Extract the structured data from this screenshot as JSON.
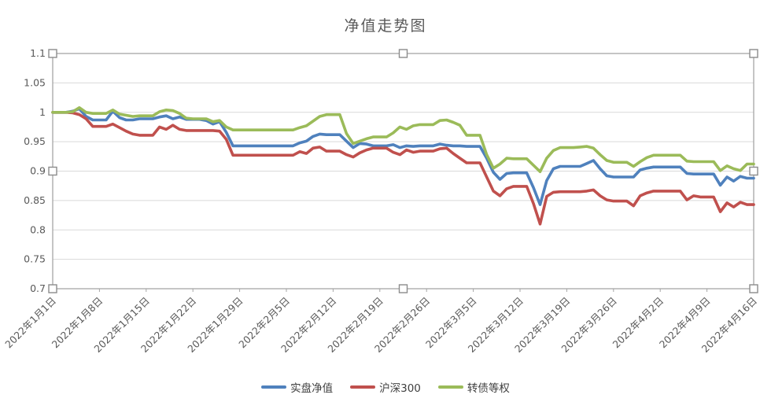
{
  "window": {
    "background": "#FFFFFF"
  },
  "selection": {
    "handles_visible": true,
    "handle_fill": "#FFFFFF",
    "handle_border": "#8C8C8C",
    "plot_border_color": "#A6A6A6"
  },
  "chart_data": {
    "type": "line",
    "title": "净值走势图",
    "grid": "horizontal",
    "gridline_color": "#D9D9D9",
    "axis_text_color": "#595959",
    "legend_position": "bottom",
    "x_label_rotation": -45,
    "ylim": [
      0.7,
      1.1
    ],
    "y_tick_step": 0.05,
    "y_tick_labels": [
      "1.1",
      "1.05",
      "1",
      "0.95",
      "0.9",
      "0.85",
      "0.8",
      "0.75",
      "0.7"
    ],
    "x_tick_labels": [
      "2022年1月1日",
      "2022年1月8日",
      "2022年1月15日",
      "2022年1月22日",
      "2022年1月29日",
      "2022年2月5日",
      "2022年2月12日",
      "2022年2月19日",
      "2022年2月26日",
      "2022年3月5日",
      "2022年3月12日",
      "2022年3月19日",
      "2022年3月26日",
      "2022年4月2日",
      "2022年4月9日",
      "2022年4月16日"
    ],
    "x_is_daily": true,
    "dates": [
      "2022-01-01",
      "2022-01-02",
      "2022-01-03",
      "2022-01-04",
      "2022-01-05",
      "2022-01-06",
      "2022-01-07",
      "2022-01-08",
      "2022-01-09",
      "2022-01-10",
      "2022-01-11",
      "2022-01-12",
      "2022-01-13",
      "2022-01-14",
      "2022-01-15",
      "2022-01-16",
      "2022-01-17",
      "2022-01-18",
      "2022-01-19",
      "2022-01-20",
      "2022-01-21",
      "2022-01-22",
      "2022-01-23",
      "2022-01-24",
      "2022-01-25",
      "2022-01-26",
      "2022-01-27",
      "2022-01-28",
      "2022-01-29",
      "2022-01-30",
      "2022-01-31",
      "2022-02-01",
      "2022-02-02",
      "2022-02-03",
      "2022-02-04",
      "2022-02-05",
      "2022-02-06",
      "2022-02-07",
      "2022-02-08",
      "2022-02-09",
      "2022-02-10",
      "2022-02-11",
      "2022-02-12",
      "2022-02-13",
      "2022-02-14",
      "2022-02-15",
      "2022-02-16",
      "2022-02-17",
      "2022-02-18",
      "2022-02-19",
      "2022-02-20",
      "2022-02-21",
      "2022-02-22",
      "2022-02-23",
      "2022-02-24",
      "2022-02-25",
      "2022-02-26",
      "2022-02-27",
      "2022-02-28",
      "2022-03-01",
      "2022-03-02",
      "2022-03-03",
      "2022-03-04",
      "2022-03-05",
      "2022-03-06",
      "2022-03-07",
      "2022-03-08",
      "2022-03-09",
      "2022-03-10",
      "2022-03-11",
      "2022-03-12",
      "2022-03-13",
      "2022-03-14",
      "2022-03-15",
      "2022-03-16",
      "2022-03-17",
      "2022-03-18",
      "2022-03-19",
      "2022-03-20",
      "2022-03-21",
      "2022-03-22",
      "2022-03-23",
      "2022-03-24",
      "2022-03-25",
      "2022-03-26",
      "2022-03-27",
      "2022-03-28",
      "2022-03-29",
      "2022-03-30",
      "2022-03-31",
      "2022-04-01",
      "2022-04-02",
      "2022-04-03",
      "2022-04-04",
      "2022-04-05",
      "2022-04-06",
      "2022-04-07",
      "2022-04-08",
      "2022-04-09",
      "2022-04-10",
      "2022-04-11",
      "2022-04-12",
      "2022-04-13",
      "2022-04-14",
      "2022-04-15",
      "2022-04-16"
    ],
    "series": [
      {
        "name": "实盘净值",
        "color": "#4F81BD",
        "values": [
          1.0,
          1.0,
          1.0,
          1.002,
          1.006,
          0.993,
          0.987,
          0.987,
          0.987,
          1.002,
          0.991,
          0.987,
          0.987,
          0.989,
          0.989,
          0.989,
          0.992,
          0.994,
          0.989,
          0.992,
          0.988,
          0.988,
          0.988,
          0.986,
          0.98,
          0.984,
          0.966,
          0.943,
          0.943,
          0.943,
          0.943,
          0.943,
          0.943,
          0.943,
          0.943,
          0.943,
          0.943,
          0.948,
          0.951,
          0.959,
          0.963,
          0.962,
          0.962,
          0.962,
          0.951,
          0.94,
          0.947,
          0.946,
          0.943,
          0.943,
          0.943,
          0.945,
          0.94,
          0.943,
          0.942,
          0.943,
          0.943,
          0.943,
          0.946,
          0.944,
          0.943,
          0.943,
          0.942,
          0.942,
          0.942,
          0.922,
          0.898,
          0.886,
          0.896,
          0.897,
          0.897,
          0.897,
          0.872,
          0.843,
          0.884,
          0.904,
          0.908,
          0.908,
          0.908,
          0.908,
          0.913,
          0.918,
          0.904,
          0.892,
          0.89,
          0.89,
          0.89,
          0.89,
          0.902,
          0.905,
          0.907,
          0.907,
          0.907,
          0.907,
          0.907,
          0.896,
          0.895,
          0.895,
          0.895,
          0.895,
          0.876,
          0.89,
          0.883,
          0.891,
          0.888,
          0.888
        ]
      },
      {
        "name": "沪深300",
        "color": "#C0504D",
        "values": [
          1.0,
          1.0,
          1.0,
          0.999,
          0.996,
          0.989,
          0.976,
          0.976,
          0.976,
          0.98,
          0.974,
          0.968,
          0.963,
          0.961,
          0.961,
          0.961,
          0.975,
          0.971,
          0.978,
          0.971,
          0.969,
          0.969,
          0.969,
          0.969,
          0.969,
          0.968,
          0.954,
          0.927,
          0.927,
          0.927,
          0.927,
          0.927,
          0.927,
          0.927,
          0.927,
          0.927,
          0.927,
          0.933,
          0.93,
          0.939,
          0.941,
          0.934,
          0.934,
          0.934,
          0.928,
          0.924,
          0.931,
          0.936,
          0.939,
          0.939,
          0.939,
          0.932,
          0.928,
          0.936,
          0.932,
          0.934,
          0.934,
          0.934,
          0.938,
          0.939,
          0.93,
          0.922,
          0.914,
          0.914,
          0.914,
          0.89,
          0.866,
          0.858,
          0.87,
          0.874,
          0.874,
          0.874,
          0.845,
          0.81,
          0.857,
          0.864,
          0.865,
          0.865,
          0.865,
          0.865,
          0.866,
          0.868,
          0.858,
          0.851,
          0.849,
          0.849,
          0.849,
          0.841,
          0.858,
          0.863,
          0.866,
          0.866,
          0.866,
          0.866,
          0.866,
          0.851,
          0.858,
          0.856,
          0.856,
          0.856,
          0.831,
          0.846,
          0.839,
          0.847,
          0.843,
          0.843
        ]
      },
      {
        "name": "转债等权",
        "color": "#9BBB59",
        "values": [
          1.0,
          1.0,
          1.0,
          1.001,
          1.008,
          1.0,
          0.998,
          0.998,
          0.998,
          1.004,
          0.997,
          0.995,
          0.993,
          0.994,
          0.994,
          0.994,
          1.001,
          1.004,
          1.003,
          0.998,
          0.99,
          0.989,
          0.989,
          0.989,
          0.984,
          0.986,
          0.975,
          0.97,
          0.97,
          0.97,
          0.97,
          0.97,
          0.97,
          0.97,
          0.97,
          0.97,
          0.97,
          0.974,
          0.977,
          0.985,
          0.993,
          0.996,
          0.996,
          0.996,
          0.964,
          0.947,
          0.951,
          0.955,
          0.958,
          0.958,
          0.958,
          0.965,
          0.975,
          0.971,
          0.977,
          0.979,
          0.979,
          0.979,
          0.986,
          0.987,
          0.983,
          0.978,
          0.961,
          0.961,
          0.961,
          0.928,
          0.905,
          0.912,
          0.922,
          0.921,
          0.921,
          0.921,
          0.91,
          0.899,
          0.922,
          0.935,
          0.94,
          0.94,
          0.94,
          0.941,
          0.942,
          0.939,
          0.928,
          0.918,
          0.915,
          0.915,
          0.915,
          0.908,
          0.916,
          0.923,
          0.927,
          0.927,
          0.927,
          0.927,
          0.927,
          0.917,
          0.916,
          0.916,
          0.916,
          0.916,
          0.901,
          0.909,
          0.904,
          0.901,
          0.912,
          0.912
        ]
      }
    ]
  }
}
